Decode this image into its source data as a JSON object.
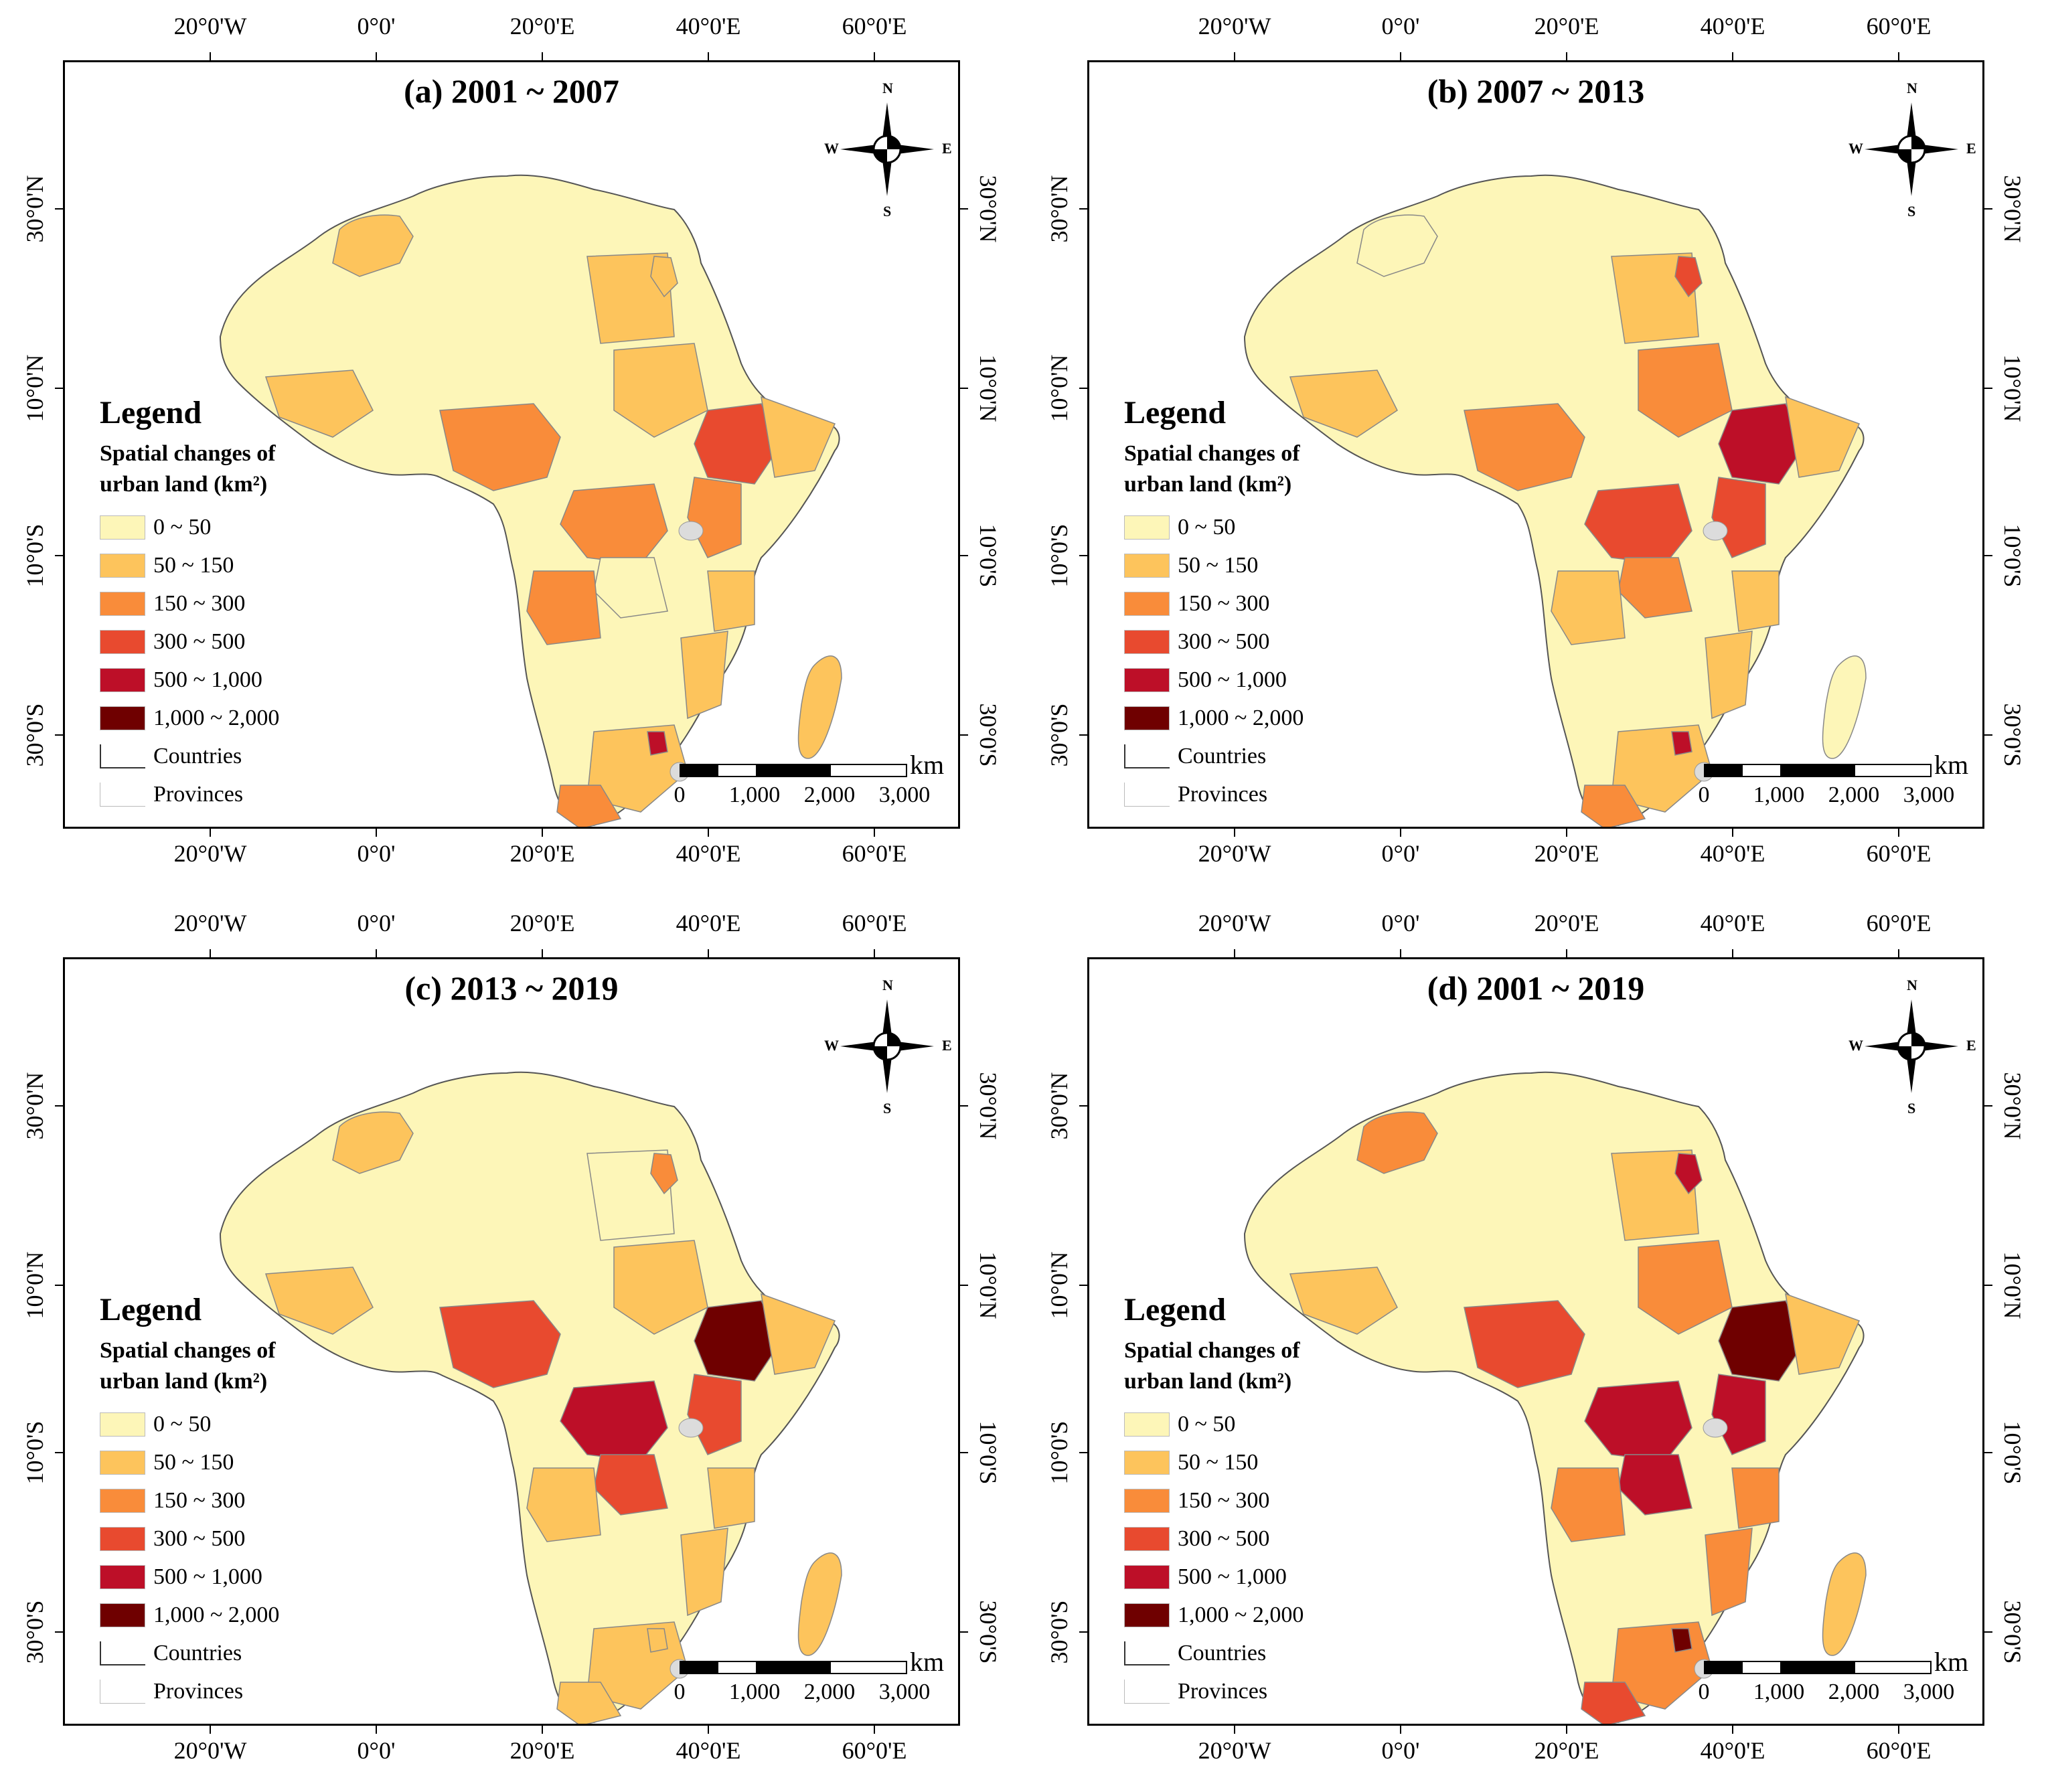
{
  "ticks": {
    "longitude": [
      "20°0'W",
      "0°0'",
      "20°0'E",
      "40°0'E",
      "60°0'E"
    ],
    "latitude": [
      "30°0'N",
      "10°0'N",
      "10°0'S",
      "30°0'S"
    ]
  },
  "legend": {
    "heading": "Legend",
    "subtitle_line1": "Spatial changes of",
    "subtitle_line2": "urban land (km²)",
    "classes": [
      {
        "label": "0 ~ 50",
        "color": "#fdf6b8"
      },
      {
        "label": "50 ~ 150",
        "color": "#fdc45c"
      },
      {
        "label": "150 ~ 300",
        "color": "#f98c3a"
      },
      {
        "label": "300 ~ 500",
        "color": "#e84a2f"
      },
      {
        "label": "500 ~ 1,000",
        "color": "#bd0f28"
      },
      {
        "label": "1,000 ~ 2,000",
        "color": "#6f0000"
      }
    ],
    "countries_label": "Countries",
    "provinces_label": "Provinces"
  },
  "compass": {
    "n": "N",
    "s": "S",
    "e": "E",
    "w": "W"
  },
  "scale_bar": {
    "unit": "km",
    "labels": [
      "0",
      "1,000",
      "2,000",
      "3,000"
    ]
  },
  "panels": [
    {
      "title": "(a) 2001 ~ 2007",
      "regions": {
        "base": 0,
        "morocco": 1,
        "egypt": 1,
        "nile_delta": 1,
        "nigeria": 2,
        "sahel_west": 1,
        "sudan": 1,
        "ethiopia": 3,
        "horn": 1,
        "drc_north": 2,
        "drc_south": 0,
        "angola": 2,
        "east_africa": 2,
        "tanzania_coast": 1,
        "south_africa": 1,
        "gauteng": 4,
        "cape": 2,
        "madagascar": 1,
        "mozambique": 1
      }
    },
    {
      "title": "(b) 2007 ~ 2013",
      "regions": {
        "base": 0,
        "morocco": 0,
        "egypt": 1,
        "nile_delta": 3,
        "nigeria": 2,
        "sahel_west": 1,
        "sudan": 2,
        "ethiopia": 4,
        "horn": 1,
        "drc_north": 3,
        "drc_south": 2,
        "angola": 1,
        "east_africa": 3,
        "tanzania_coast": 1,
        "south_africa": 1,
        "gauteng": 4,
        "cape": 2,
        "madagascar": 0,
        "mozambique": 1
      }
    },
    {
      "title": "(c) 2013 ~ 2019",
      "regions": {
        "base": 0,
        "morocco": 1,
        "egypt": 0,
        "nile_delta": 2,
        "nigeria": 3,
        "sahel_west": 1,
        "sudan": 1,
        "ethiopia": 5,
        "horn": 1,
        "drc_north": 4,
        "drc_south": 3,
        "angola": 1,
        "east_africa": 3,
        "tanzania_coast": 1,
        "south_africa": 1,
        "gauteng": 1,
        "cape": 1,
        "madagascar": 1,
        "mozambique": 1
      }
    },
    {
      "title": "(d) 2001 ~ 2019",
      "regions": {
        "base": 0,
        "morocco": 2,
        "egypt": 1,
        "nile_delta": 4,
        "nigeria": 3,
        "sahel_west": 1,
        "sudan": 2,
        "ethiopia": 5,
        "horn": 1,
        "drc_north": 4,
        "drc_south": 4,
        "angola": 2,
        "east_africa": 4,
        "tanzania_coast": 2,
        "south_africa": 2,
        "gauteng": 5,
        "cape": 3,
        "madagascar": 1,
        "mozambique": 2
      }
    }
  ]
}
